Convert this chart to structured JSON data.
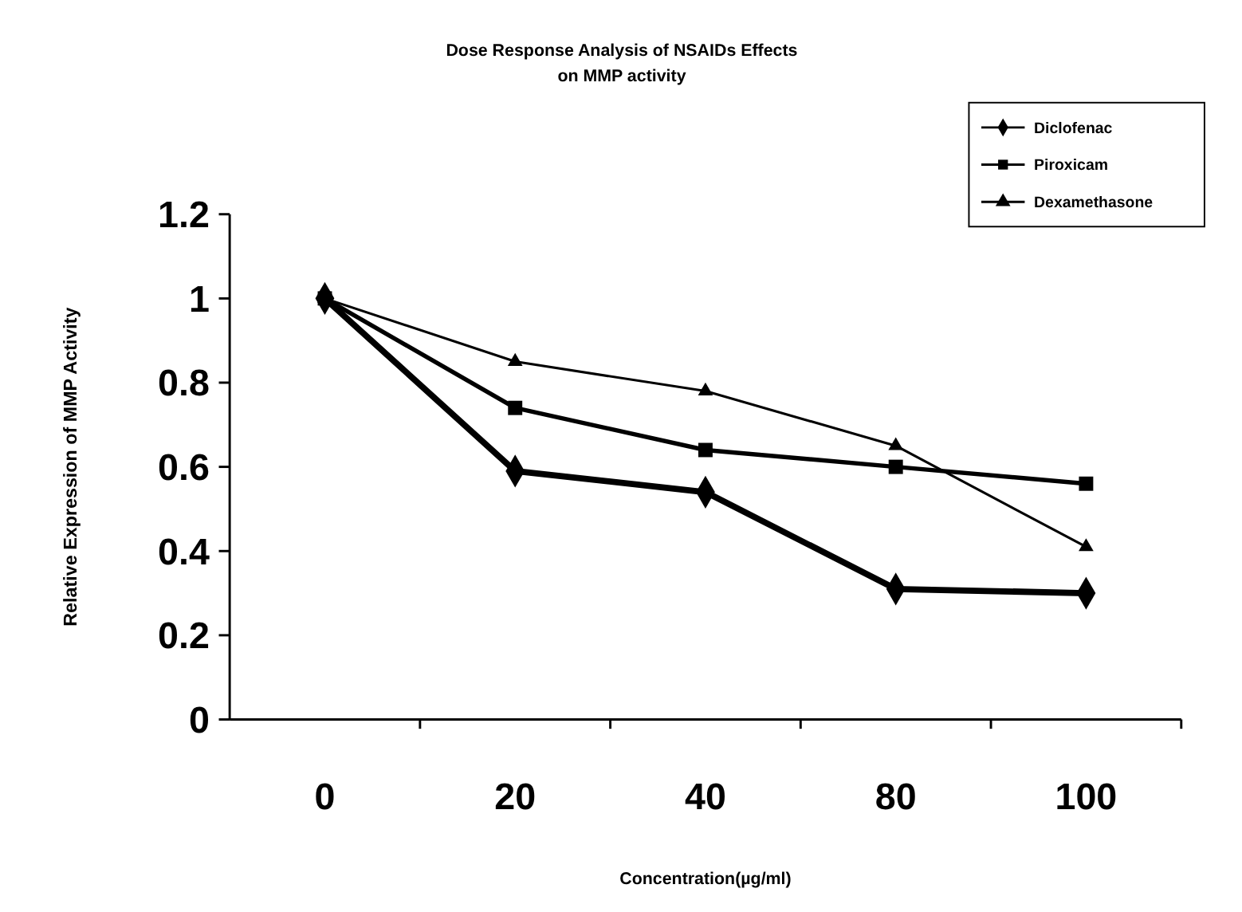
{
  "chart_data": {
    "type": "line",
    "title": "Dose Response Analysis of NSAIDs Effects\non MMP activity",
    "xlabel": "Concentration(µg/ml)",
    "ylabel": "Relative Expression of MMP Activity",
    "categories": [
      "0",
      "20",
      "40",
      "80",
      "100"
    ],
    "series": [
      {
        "name": "Diclofenac",
        "color": "#000000",
        "marker": "diamond",
        "values": [
          1,
          0.59,
          0.54,
          0.31,
          0.3
        ]
      },
      {
        "name": "Piroxicam",
        "color": "#000000",
        "marker": "square",
        "values": [
          1,
          0.74,
          0.64,
          0.6,
          0.56
        ]
      },
      {
        "name": "Dexamethasone",
        "color": "#000000",
        "marker": "triangle",
        "values": [
          1,
          0.85,
          0.78,
          0.65,
          0.41
        ]
      }
    ],
    "ylim": [
      0,
      1.2
    ],
    "yticks": [
      0,
      0.2,
      0.4,
      0.6,
      0.8,
      1,
      1.2
    ],
    "grid": false,
    "legend": "top right",
    "line_style": "solid"
  }
}
